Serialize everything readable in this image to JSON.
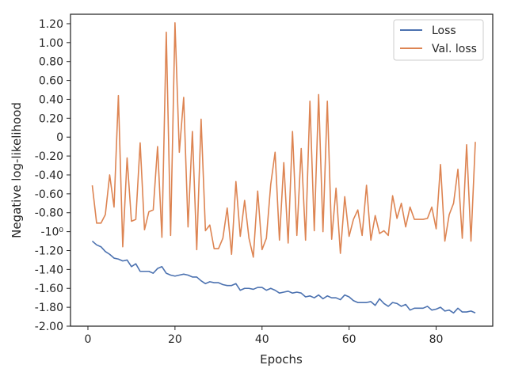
{
  "chart_data": {
    "type": "line",
    "xlabel": "Epochs",
    "ylabel": "Negative log-likelihood",
    "xlim": [
      -4,
      93
    ],
    "ylim": [
      -2.0,
      1.3
    ],
    "x_ticks": [
      0,
      20,
      40,
      60,
      80
    ],
    "y_ticks": [
      -2.0,
      -1.8,
      -1.6,
      -1.4,
      -1.2,
      -1.0,
      -0.8,
      -0.6,
      -0.4,
      -0.2,
      0,
      0.2,
      0.4,
      0.6,
      0.8,
      1.0,
      1.2
    ],
    "y_tick_labels": [
      "-2.00",
      "-1.80",
      "-1.60",
      "-1.40",
      "-1.20",
      "-10⁰",
      "-0.80",
      "-0.60",
      "-0.40",
      "-0.20",
      "0",
      "0.20",
      "0.40",
      "0.60",
      "0.80",
      "1.00",
      "1.20"
    ],
    "x_tick_labels": [
      "0",
      "20",
      "40",
      "60",
      "80"
    ],
    "grid": false,
    "legend_position": "top-right",
    "x": [
      1,
      2,
      3,
      4,
      5,
      6,
      7,
      8,
      9,
      10,
      11,
      12,
      13,
      14,
      15,
      16,
      17,
      18,
      19,
      20,
      21,
      22,
      23,
      24,
      25,
      26,
      27,
      28,
      29,
      30,
      31,
      32,
      33,
      34,
      35,
      36,
      37,
      38,
      39,
      40,
      41,
      42,
      43,
      44,
      45,
      46,
      47,
      48,
      49,
      50,
      51,
      52,
      53,
      54,
      55,
      56,
      57,
      58,
      59,
      60,
      61,
      62,
      63,
      64,
      65,
      66,
      67,
      68,
      69,
      70,
      71,
      72,
      73,
      74,
      75,
      76,
      77,
      78,
      79,
      80,
      81,
      82,
      83,
      84,
      85,
      86,
      87,
      88,
      89
    ],
    "series": [
      {
        "name": "Loss",
        "color": "#4c72b0",
        "values": [
          -1.1,
          -1.14,
          -1.16,
          -1.21,
          -1.24,
          -1.28,
          -1.29,
          -1.31,
          -1.3,
          -1.37,
          -1.34,
          -1.42,
          -1.42,
          -1.42,
          -1.44,
          -1.39,
          -1.37,
          -1.44,
          -1.46,
          -1.47,
          -1.46,
          -1.45,
          -1.46,
          -1.48,
          -1.48,
          -1.52,
          -1.55,
          -1.53,
          -1.54,
          -1.54,
          -1.56,
          -1.57,
          -1.57,
          -1.55,
          -1.62,
          -1.6,
          -1.6,
          -1.61,
          -1.59,
          -1.59,
          -1.62,
          -1.6,
          -1.62,
          -1.65,
          -1.64,
          -1.63,
          -1.65,
          -1.64,
          -1.65,
          -1.69,
          -1.68,
          -1.7,
          -1.67,
          -1.71,
          -1.68,
          -1.7,
          -1.7,
          -1.72,
          -1.67,
          -1.69,
          -1.73,
          -1.75,
          -1.75,
          -1.75,
          -1.74,
          -1.78,
          -1.71,
          -1.76,
          -1.79,
          -1.75,
          -1.76,
          -1.79,
          -1.77,
          -1.83,
          -1.81,
          -1.81,
          -1.81,
          -1.79,
          -1.83,
          -1.82,
          -1.8,
          -1.84,
          -1.83,
          -1.86,
          -1.81,
          -1.85,
          -1.85,
          -1.84,
          -1.86
        ]
      },
      {
        "name": "Val. loss",
        "color": "#dd8452",
        "values": [
          -0.51,
          -0.91,
          -0.91,
          -0.82,
          -0.4,
          -0.74,
          0.44,
          -1.16,
          -0.22,
          -0.89,
          -0.87,
          -0.06,
          -0.98,
          -0.79,
          -0.77,
          -0.1,
          -1.06,
          1.11,
          -1.04,
          1.21,
          -0.16,
          0.42,
          -0.95,
          0.06,
          -1.19,
          0.19,
          -0.99,
          -0.93,
          -1.18,
          -1.18,
          -1.07,
          -0.75,
          -1.24,
          -0.47,
          -1.05,
          -0.67,
          -1.07,
          -1.27,
          -0.57,
          -1.19,
          -1.07,
          -0.5,
          -0.16,
          -1.09,
          -0.27,
          -1.12,
          0.06,
          -1.04,
          -0.12,
          -1.09,
          0.38,
          -0.99,
          0.45,
          -1.0,
          0.38,
          -1.08,
          -0.54,
          -1.23,
          -0.63,
          -1.05,
          -0.87,
          -0.77,
          -1.04,
          -0.51,
          -1.09,
          -0.83,
          -1.02,
          -0.99,
          -1.04,
          -0.62,
          -0.86,
          -0.7,
          -0.95,
          -0.74,
          -0.87,
          -0.87,
          -0.87,
          -0.86,
          -0.74,
          -0.97,
          -0.29,
          -1.1,
          -0.82,
          -0.7,
          -0.34,
          -1.07,
          -0.08,
          -1.1,
          -0.05
        ]
      }
    ]
  }
}
